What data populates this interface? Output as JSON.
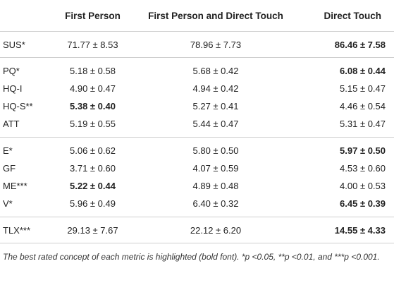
{
  "headers": {
    "metric": "",
    "first_person": "First Person",
    "fp_dt": "First Person and Direct Touch",
    "direct_touch": "Direct Touch"
  },
  "groups": [
    {
      "rows": [
        {
          "metric": "SUS*",
          "fp": "71.77 ± 8.53",
          "fpdt": "78.96 ± 7.73",
          "dt": "86.46 ± 7.58",
          "bold": "dt"
        }
      ]
    },
    {
      "rows": [
        {
          "metric": "PQ*",
          "fp": "5.18 ± 0.58",
          "fpdt": "5.68 ± 0.42",
          "dt": "6.08 ± 0.44",
          "bold": "dt"
        },
        {
          "metric": "HQ-I",
          "fp": "4.90 ± 0.47",
          "fpdt": "4.94 ± 0.42",
          "dt": "5.15 ± 0.47",
          "bold": ""
        },
        {
          "metric": "HQ-S**",
          "fp": "5.38 ± 0.40",
          "fpdt": "5.27 ± 0.41",
          "dt": "4.46 ± 0.54",
          "bold": "fp"
        },
        {
          "metric": "ATT",
          "fp": "5.19 ± 0.55",
          "fpdt": "5.44 ± 0.47",
          "dt": "5.31 ± 0.47",
          "bold": ""
        }
      ]
    },
    {
      "rows": [
        {
          "metric": "E*",
          "fp": "5.06 ± 0.62",
          "fpdt": "5.80 ± 0.50",
          "dt": "5.97 ± 0.50",
          "bold": "dt"
        },
        {
          "metric": "GF",
          "fp": "3.71 ± 0.60",
          "fpdt": "4.07 ± 0.59",
          "dt": "4.53 ± 0.60",
          "bold": ""
        },
        {
          "metric": "ME***",
          "fp": "5.22 ± 0.44",
          "fpdt": "4.89 ± 0.48",
          "dt": "4.00 ± 0.53",
          "bold": "fp"
        },
        {
          "metric": "V*",
          "fp": "5.96 ± 0.49",
          "fpdt": "6.40 ± 0.32",
          "dt": "6.45 ± 0.39",
          "bold": "dt"
        }
      ]
    },
    {
      "rows": [
        {
          "metric": "TLX***",
          "fp": "29.13 ± 7.67",
          "fpdt": "22.12 ± 6.20",
          "dt": "14.55 ± 4.33",
          "bold": "dt"
        }
      ]
    }
  ],
  "footnote": "The best rated concept of each metric is highlighted (bold font). *p <0.05, **p <0.01, and ***p <0.001."
}
